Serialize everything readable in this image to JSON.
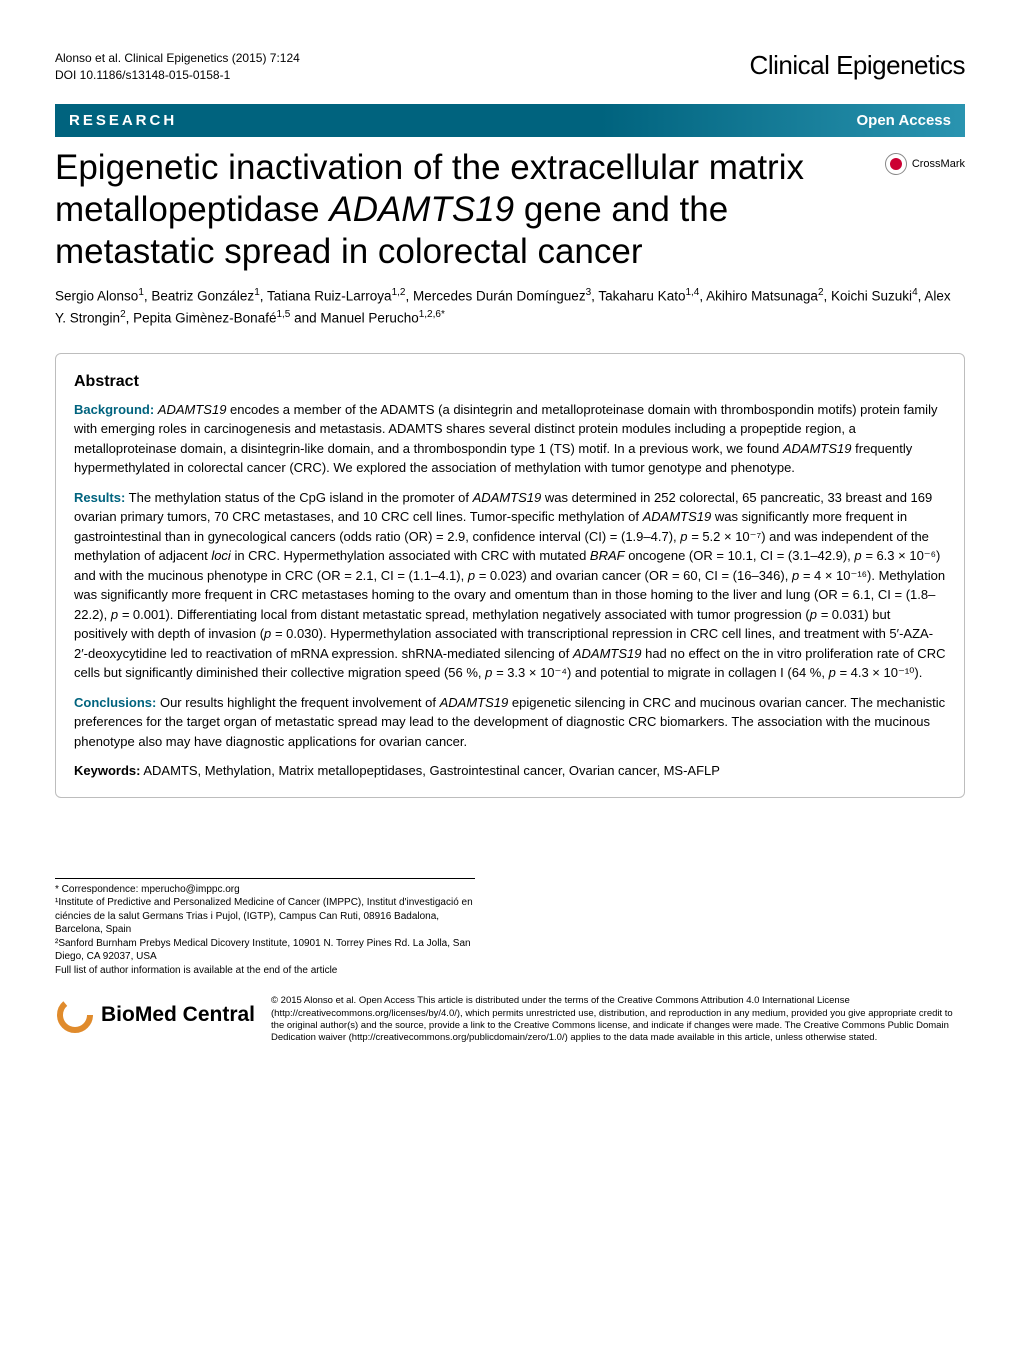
{
  "header": {
    "citation": "Alonso et al. Clinical Epigenetics  (2015) 7:124",
    "doi": "DOI 10.1186/s13148-015-0158-1",
    "journal": "Clinical Epigenetics"
  },
  "banner": {
    "section": "RESEARCH",
    "access": "Open Access"
  },
  "crossmark": "CrossMark",
  "title_parts": {
    "pre": "Epigenetic inactivation of the extracellular matrix metallopeptidase ",
    "gene": "ADAMTS19",
    "post": " gene and the metastatic spread in colorectal cancer"
  },
  "authors_html": "Sergio Alonso<sup>1</sup>, Beatriz González<sup>1</sup>, Tatiana Ruiz-Larroya<sup>1,2</sup>, Mercedes Durán Domínguez<sup>3</sup>, Takaharu Kato<sup>1,4</sup>, Akihiro Matsunaga<sup>2</sup>, Koichi Suzuki<sup>4</sup>, Alex Y. Strongin<sup>2</sup>, Pepita Gimènez-Bonafé<sup>1,5</sup> and Manuel Perucho<sup>1,2,6*</sup>",
  "abstract": {
    "heading": "Abstract",
    "background_label": "Background:",
    "background_text": " ADAMTS19 encodes a member of the ADAMTS (a disintegrin and metalloproteinase domain with thrombospondin motifs) protein family with emerging roles in carcinogenesis and metastasis. ADAMTS shares several distinct protein modules including a propeptide region, a metalloproteinase domain, a disintegrin-like domain, and a thrombospondin type 1 (TS) motif. In a previous work, we found ADAMTS19 frequently hypermethylated in colorectal cancer (CRC). We explored the association of methylation with tumor genotype and phenotype.",
    "results_label": "Results:",
    "results_text": " The methylation status of the CpG island in the promoter of ADAMTS19 was determined in 252 colorectal, 65 pancreatic, 33 breast and 169 ovarian primary tumors, 70 CRC metastases, and 10 CRC cell lines. Tumor-specific methylation of ADAMTS19 was significantly more frequent in gastrointestinal than in gynecological cancers (odds ratio (OR) = 2.9, confidence interval (CI) = (1.9–4.7), p = 5.2 × 10⁻⁷) and was independent of the methylation of adjacent loci in CRC. Hypermethylation associated with CRC with mutated BRAF oncogene (OR = 10.1, CI = (3.1–42.9), p = 6.3 × 10⁻⁶) and with the mucinous phenotype in CRC (OR = 2.1, CI = (1.1–4.1), p = 0.023) and ovarian cancer (OR = 60, CI = (16–346), p = 4 × 10⁻¹⁶). Methylation was significantly more frequent in CRC metastases homing to the ovary and omentum than in those homing to the liver and lung (OR = 6.1, CI = (1.8–22.2), p = 0.001). Differentiating local from distant metastatic spread, methylation negatively associated with tumor progression (p = 0.031) but positively with depth of invasion (p = 0.030). Hypermethylation associated with transcriptional repression in CRC cell lines, and treatment with 5′-AZA-2′-deoxycytidine led to reactivation of mRNA expression. shRNA-mediated silencing of ADAMTS19 had no effect on the in vitro proliferation rate of CRC cells but significantly diminished their collective migration speed (56 %, p = 3.3 × 10⁻⁴) and potential to migrate in collagen I (64 %, p = 4.3 × 10⁻¹⁰).",
    "conclusions_label": "Conclusions:",
    "conclusions_text": " Our results highlight the frequent involvement of ADAMTS19 epigenetic silencing in CRC and mucinous ovarian cancer. The mechanistic preferences for the target organ of metastatic spread may lead to the development of diagnostic CRC biomarkers. The association with the mucinous phenotype also may have diagnostic applications for ovarian cancer.",
    "keywords_label": "Keywords:",
    "keywords_text": " ADAMTS, Methylation, Matrix metallopeptidases, Gastrointestinal cancer, Ovarian cancer, MS-AFLP"
  },
  "footer": {
    "correspondence": "* Correspondence: mperucho@imppc.org",
    "affil1": "¹Institute of Predictive and Personalized Medicine of Cancer (IMPPC), Institut d'investigació en ciéncies de la salut Germans Trias i Pujol, (IGTP), Campus Can Ruti, 08916 Badalona, Barcelona, Spain",
    "affil2": "²Sanford Burnham Prebys Medical Dicovery Institute, 10901 N. Torrey Pines Rd. La Jolla, San Diego, CA 92037, USA",
    "fullList": "Full list of author information is available at the end of the article"
  },
  "license": {
    "logo_text": "BioMed Central",
    "text": "© 2015 Alonso et al. Open Access This article is distributed under the terms of the Creative Commons Attribution 4.0 International License (http://creativecommons.org/licenses/by/4.0/), which permits unrestricted use, distribution, and reproduction in any medium, provided you give appropriate credit to the original author(s) and the source, provide a link to the Creative Commons license, and indicate if changes were made. The Creative Commons Public Domain Dedication waiver (http://creativecommons.org/publicdomain/zero/1.0/) applies to the data made available in this article, unless otherwise stated."
  },
  "colors": {
    "banner_start": "#00637e",
    "banner_end": "#2a94b0",
    "subhead": "#00637e",
    "box_border": "#bdbdbd",
    "crossmark_dot": "#cc0033",
    "bmc_swirl": "#e08b2c"
  }
}
